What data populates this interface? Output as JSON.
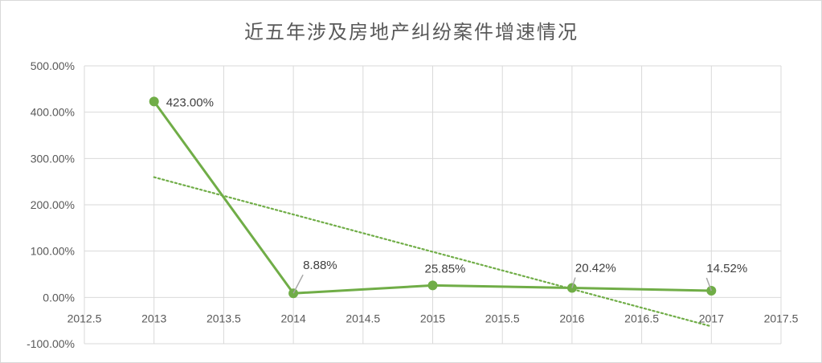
{
  "chart_data": {
    "type": "scatter",
    "title": "近五年涉及房地产纠纷案件增速情况",
    "x": [
      2013,
      2014,
      2015,
      2016,
      2017
    ],
    "values": [
      423.0,
      8.88,
      25.85,
      20.42,
      14.52
    ],
    "data_labels": [
      "423.00%",
      "8.88%",
      "25.85%",
      "20.42%",
      "14.52%"
    ],
    "xlim": [
      2012.5,
      2017.5
    ],
    "ylim": [
      -100,
      500
    ],
    "x_ticks": [
      2012.5,
      2013,
      2013.5,
      2014,
      2014.5,
      2015,
      2015.5,
      2016,
      2016.5,
      2017,
      2017.5
    ],
    "x_tick_labels": [
      "2012.5",
      "2013",
      "2013.5",
      "2014",
      "2014.5",
      "2015",
      "2015.5",
      "2016",
      "2016.5",
      "2017",
      "2017.5"
    ],
    "y_ticks": [
      500,
      400,
      300,
      200,
      100,
      0,
      -100
    ],
    "y_tick_labels": [
      "500.00%",
      "400.00%",
      "300.00%",
      "200.00%",
      "100.00%",
      "0.00%",
      "-100.00%"
    ],
    "trendline": {
      "type": "linear",
      "style": "dotted"
    },
    "grid": true,
    "legend": "none",
    "colors": {
      "series": "#70AD47",
      "grid": "#d9d9d9",
      "leader": "#a6a6a6"
    }
  }
}
